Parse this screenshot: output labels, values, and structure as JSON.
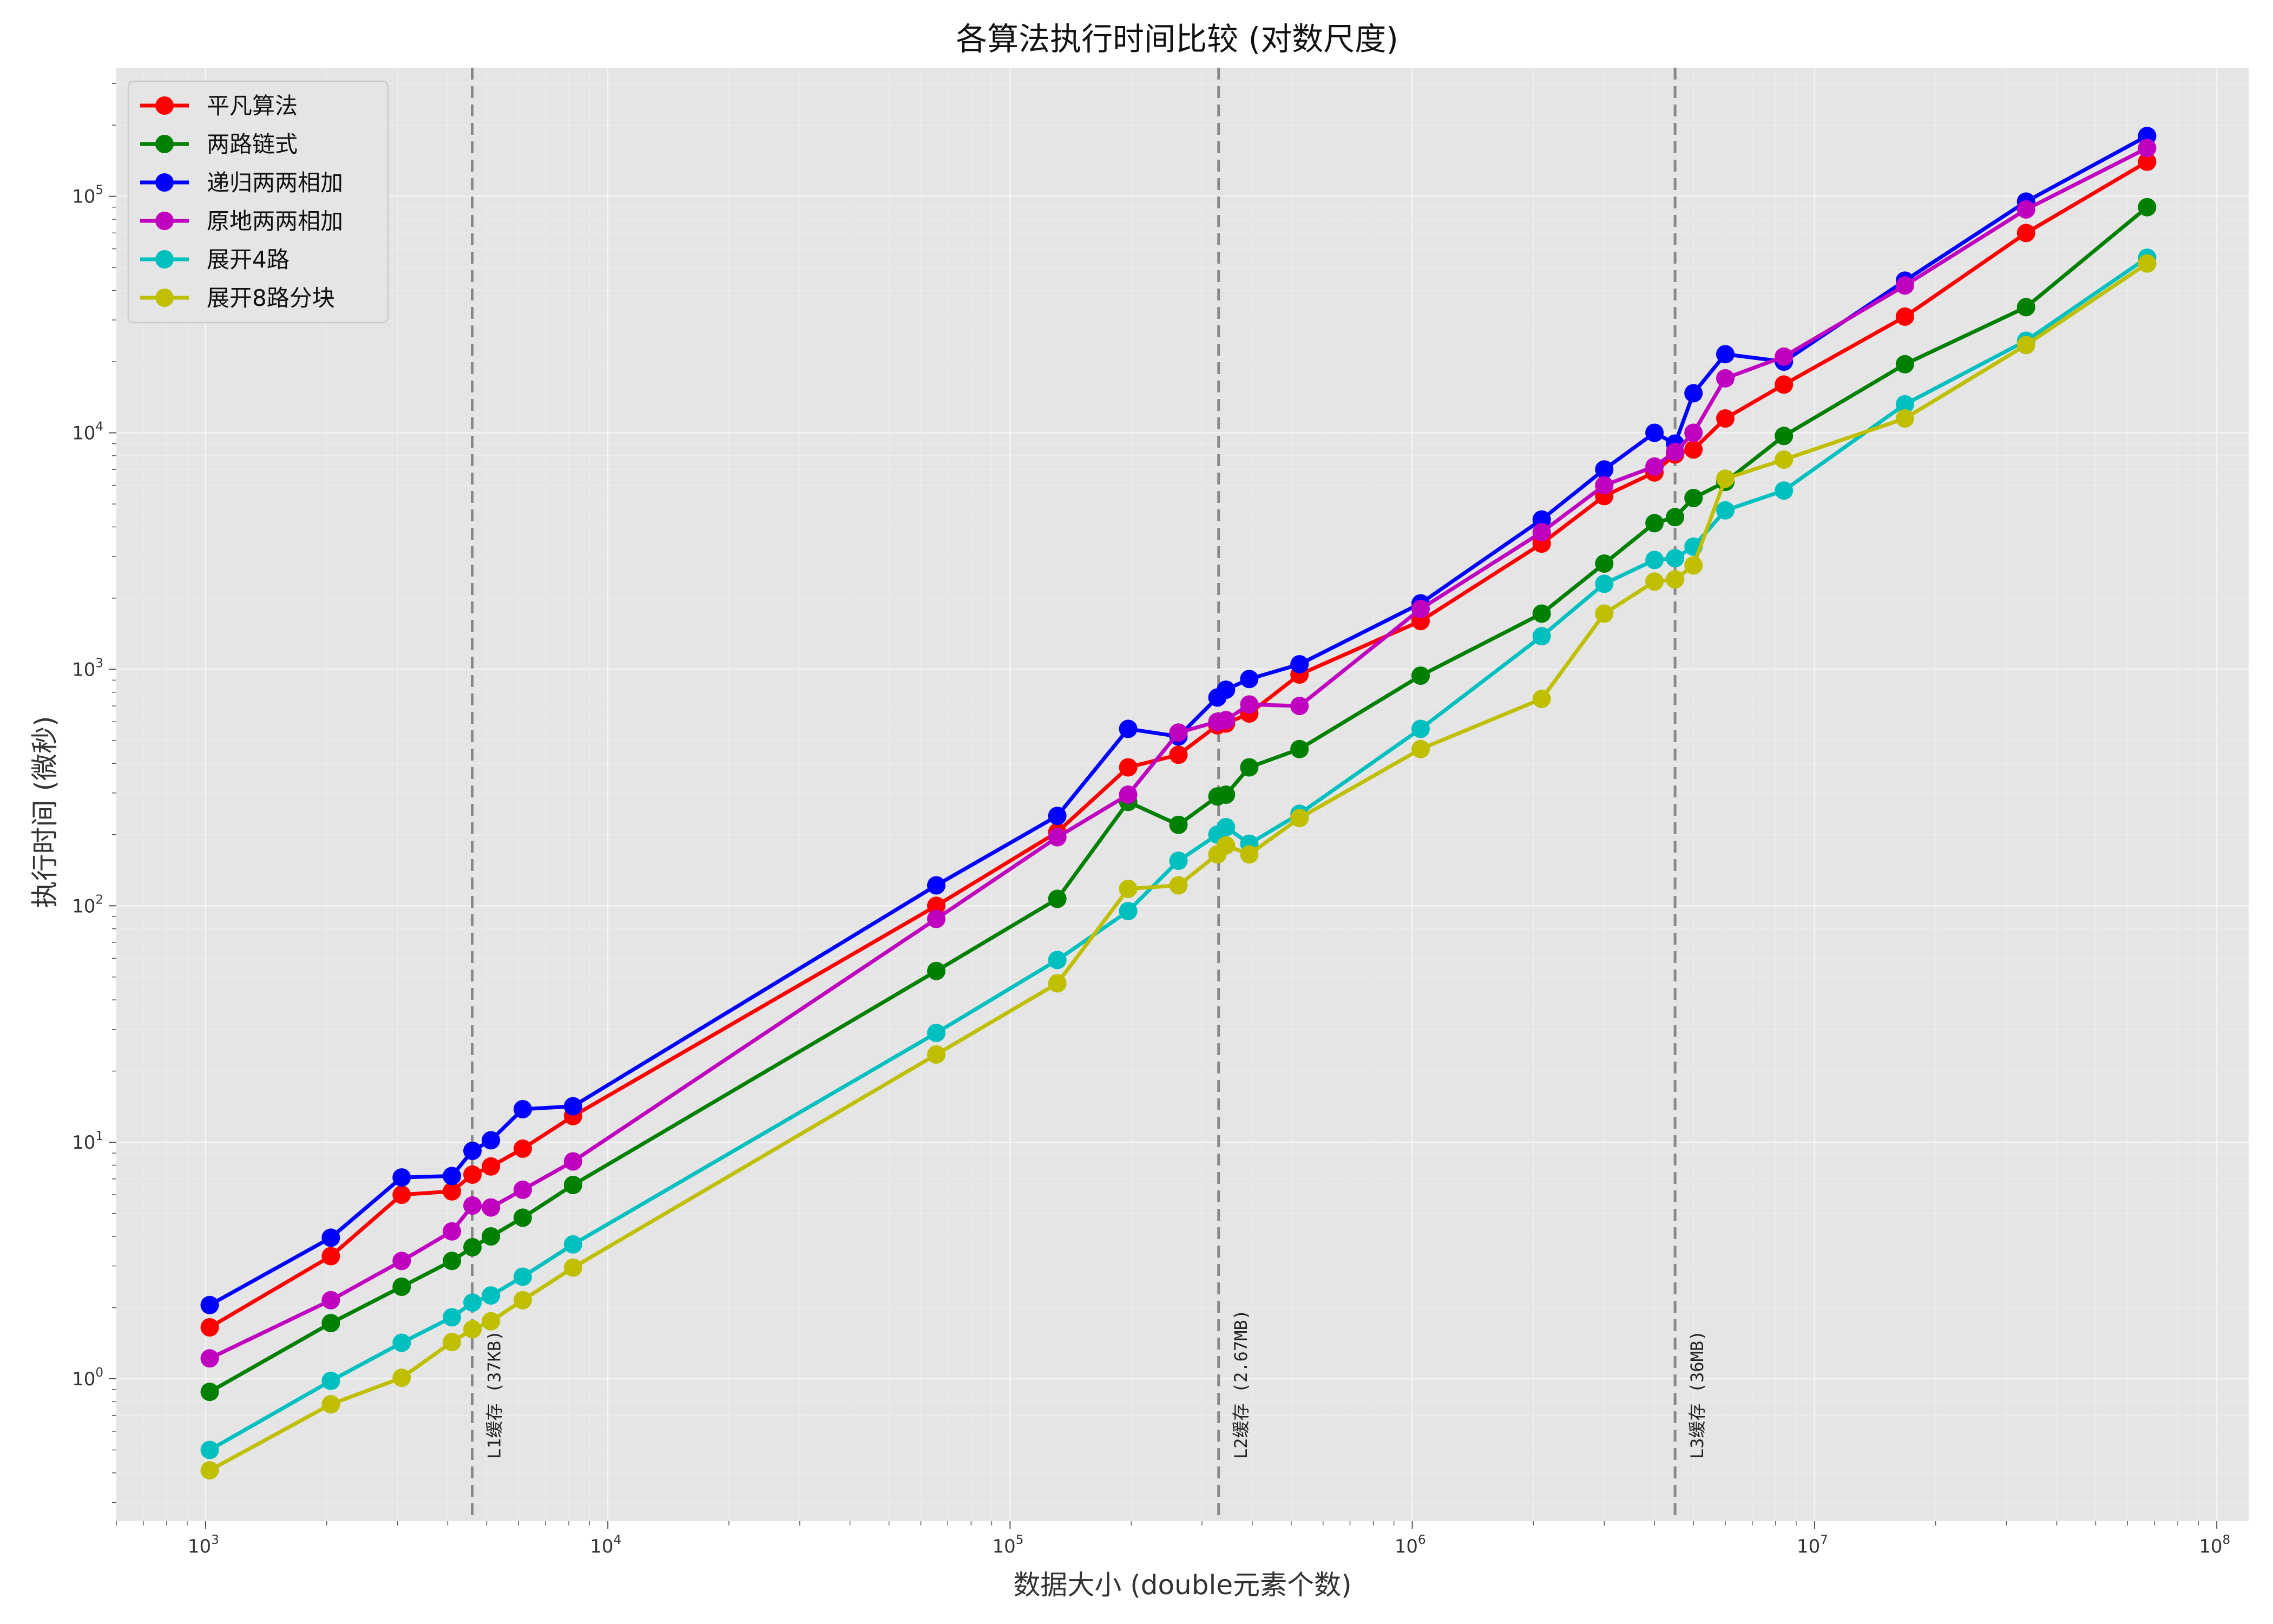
{
  "chart_data": {
    "type": "line",
    "title": "各算法执行时间比较 (对数尺度)",
    "xlabel": "数据大小 (double元素个数)",
    "ylabel": "执行时间 (微秒)",
    "xscale": "log",
    "yscale": "log",
    "xlim": [
      600,
      120000000
    ],
    "ylim": [
      0.25,
      350000
    ],
    "grid": true,
    "legend_position": "top-left",
    "x_ticks": [
      {
        "base": "10",
        "exp": "3",
        "value": 1000
      },
      {
        "base": "10",
        "exp": "4",
        "value": 10000
      },
      {
        "base": "10",
        "exp": "5",
        "value": 100000
      },
      {
        "base": "10",
        "exp": "6",
        "value": 1000000
      },
      {
        "base": "10",
        "exp": "7",
        "value": 10000000
      },
      {
        "base": "10",
        "exp": "8",
        "value": 100000000
      }
    ],
    "y_ticks": [
      {
        "base": "10",
        "exp": "0",
        "value": 1
      },
      {
        "base": "10",
        "exp": "1",
        "value": 10
      },
      {
        "base": "10",
        "exp": "2",
        "value": 100
      },
      {
        "base": "10",
        "exp": "3",
        "value": 1000
      },
      {
        "base": "10",
        "exp": "4",
        "value": 10000
      },
      {
        "base": "10",
        "exp": "5",
        "value": 100000
      }
    ],
    "x": [
      1024,
      2048,
      3072,
      4096,
      4608,
      5120,
      6144,
      8192,
      65536,
      131072,
      196608,
      262144,
      327680,
      344064,
      393216,
      524288,
      1048576,
      2097152,
      3000000,
      4000000,
      4500000,
      5000000,
      6000000,
      8388608,
      16777216,
      33554432,
      67108864
    ],
    "annotations": [
      {
        "x": 4600,
        "label": "L1缓存 (37KB)"
      },
      {
        "x": 330000,
        "label": "L2缓存 (2.67MB)"
      },
      {
        "x": 4500000,
        "label": "L3缓存 (36MB)"
      }
    ],
    "series": [
      {
        "name": "平凡算法",
        "color": "#ff0000",
        "values": [
          1.65,
          3.3,
          6.0,
          6.2,
          7.3,
          7.9,
          9.4,
          12.9,
          100,
          205,
          385,
          435,
          580,
          590,
          650,
          950,
          1600,
          3400,
          5400,
          6800,
          8100,
          8500,
          11500,
          16000,
          31000,
          70000,
          140000
        ]
      },
      {
        "name": "两路链式",
        "color": "#008000",
        "values": [
          0.88,
          1.72,
          2.45,
          3.15,
          3.6,
          4.0,
          4.8,
          6.6,
          53,
          107,
          275,
          220,
          290,
          295,
          385,
          460,
          940,
          1720,
          2800,
          4150,
          4400,
          5300,
          6200,
          9700,
          19500,
          34000,
          90000
        ]
      },
      {
        "name": "递归两两相加",
        "color": "#0000ff",
        "values": [
          2.05,
          3.95,
          7.1,
          7.2,
          9.2,
          10.2,
          13.8,
          14.2,
          122,
          240,
          560,
          520,
          760,
          820,
          910,
          1050,
          1900,
          4300,
          7000,
          10000,
          9000,
          14700,
          21500,
          20000,
          44000,
          95000,
          180000
        ]
      },
      {
        "name": "原地两两相加",
        "color": "#bf00bf",
        "values": [
          1.22,
          2.15,
          3.15,
          4.2,
          5.4,
          5.3,
          6.3,
          8.3,
          88,
          195,
          295,
          540,
          600,
          610,
          710,
          700,
          1800,
          3800,
          6000,
          7200,
          8300,
          10000,
          17000,
          21000,
          42000,
          88000,
          160000
        ]
      },
      {
        "name": "展开4路",
        "color": "#00bfbf",
        "values": [
          0.5,
          0.98,
          1.42,
          1.82,
          2.1,
          2.25,
          2.7,
          3.7,
          29,
          59,
          95,
          155,
          200,
          215,
          183,
          245,
          560,
          1380,
          2300,
          2900,
          2950,
          3300,
          4700,
          5700,
          13200,
          24500,
          55000
        ]
      },
      {
        "name": "展开8路分块",
        "color": "#bfbf00",
        "values": [
          0.41,
          0.78,
          1.01,
          1.43,
          1.62,
          1.75,
          2.15,
          2.95,
          23.5,
          47,
          118,
          122,
          165,
          180,
          165,
          235,
          460,
          750,
          1720,
          2350,
          2400,
          2750,
          6400,
          7700,
          11500,
          23500,
          52000
        ]
      }
    ]
  }
}
